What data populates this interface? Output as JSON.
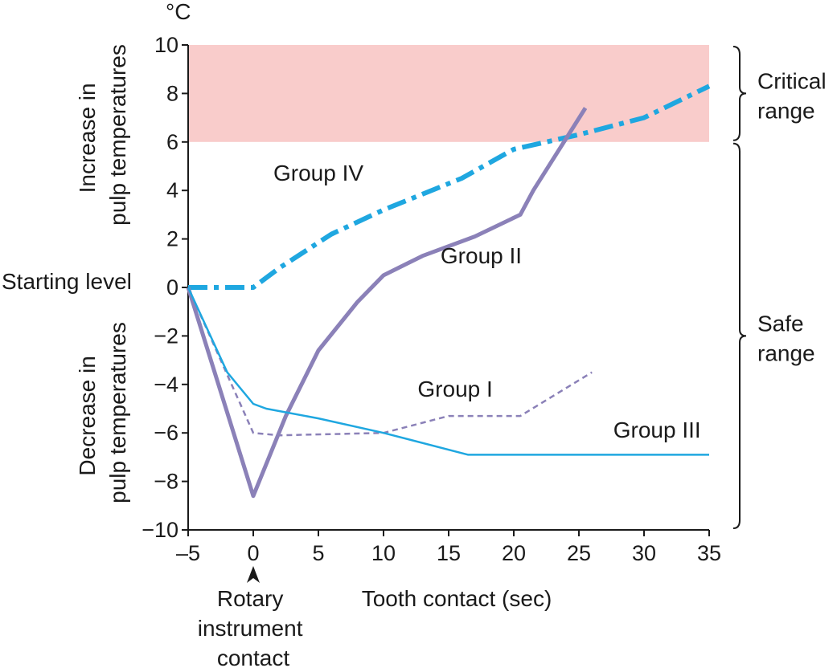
{
  "chart_data": {
    "type": "line",
    "unit_label": "°C",
    "xlabel": "Tooth contact (sec)",
    "ylabel_upper": [
      "Increase in",
      "pulp temperatures"
    ],
    "ylabel_lower": [
      "Decrease in",
      "pulp temperatures"
    ],
    "starting_level_label": "Starting level",
    "marker_label": [
      "Rotary",
      "instrument",
      "contact"
    ],
    "marker_x": 0,
    "xlim": [
      -5,
      35
    ],
    "ylim": [
      -10,
      10
    ],
    "xticks": [
      -5,
      0,
      5,
      10,
      15,
      20,
      25,
      30,
      35
    ],
    "xtick_labels": [
      "–5",
      "0",
      "5",
      "10",
      "15",
      "20",
      "25",
      "30",
      "35"
    ],
    "yticks": [
      10,
      8,
      6,
      4,
      2,
      0,
      -2,
      -4,
      -6,
      -8,
      -10
    ],
    "ytick_labels": [
      "10",
      "8",
      "6",
      "4",
      "2",
      "0",
      "−2",
      "−4",
      "−6",
      "−8",
      "−10"
    ],
    "critical_band": {
      "y0": 6,
      "y1": 10,
      "color": "#f9cccb"
    },
    "ranges": [
      {
        "name": "critical",
        "lines": [
          "Critical",
          "range"
        ],
        "from": 6,
        "to": 10
      },
      {
        "name": "safe",
        "lines": [
          "Safe",
          "range"
        ],
        "from": -10,
        "to": 6
      }
    ],
    "series": [
      {
        "name": "Group IV",
        "label": "Group IV",
        "color": "#1fa7e0",
        "width": 6,
        "dash": "24 8 6 8",
        "label_at": [
          5,
          4.4
        ],
        "points": [
          [
            -5,
            0
          ],
          [
            0,
            0
          ],
          [
            2,
            0.8
          ],
          [
            6,
            2.2
          ],
          [
            10,
            3.2
          ],
          [
            16,
            4.5
          ],
          [
            20,
            5.7
          ],
          [
            25,
            6.3
          ],
          [
            30,
            7
          ],
          [
            35,
            8.3
          ]
        ]
      },
      {
        "name": "Group II",
        "label": "Group II",
        "color": "#8b81b8",
        "width": 5,
        "dash": "",
        "label_at": [
          17.5,
          1
        ],
        "points": [
          [
            -5,
            0
          ],
          [
            0,
            -8.6
          ],
          [
            2.5,
            -5.3
          ],
          [
            5,
            -2.6
          ],
          [
            8,
            -0.6
          ],
          [
            10,
            0.5
          ],
          [
            13,
            1.3
          ],
          [
            17,
            2.1
          ],
          [
            20.5,
            3
          ],
          [
            21.5,
            4
          ],
          [
            25.5,
            7.4
          ]
        ]
      },
      {
        "name": "Group I",
        "label": "Group I",
        "color": "#8b81b8",
        "width": 2.5,
        "dash": "7 5",
        "label_at": [
          15.5,
          -4.5
        ],
        "points": [
          [
            -5,
            0
          ],
          [
            0,
            -6
          ],
          [
            2,
            -6.1
          ],
          [
            10,
            -6
          ],
          [
            15,
            -5.3
          ],
          [
            20.5,
            -5.3
          ],
          [
            26,
            -3.5
          ]
        ]
      },
      {
        "name": "Group III",
        "label": "Group III",
        "color": "#1fa7e0",
        "width": 2.5,
        "dash": "",
        "label_at": [
          31,
          -6.2
        ],
        "points": [
          [
            -5,
            0
          ],
          [
            -2,
            -3.5
          ],
          [
            0,
            -4.8
          ],
          [
            1,
            -5
          ],
          [
            5,
            -5.4
          ],
          [
            10,
            -6
          ],
          [
            16.5,
            -6.9
          ],
          [
            35,
            -6.9
          ]
        ]
      }
    ]
  }
}
